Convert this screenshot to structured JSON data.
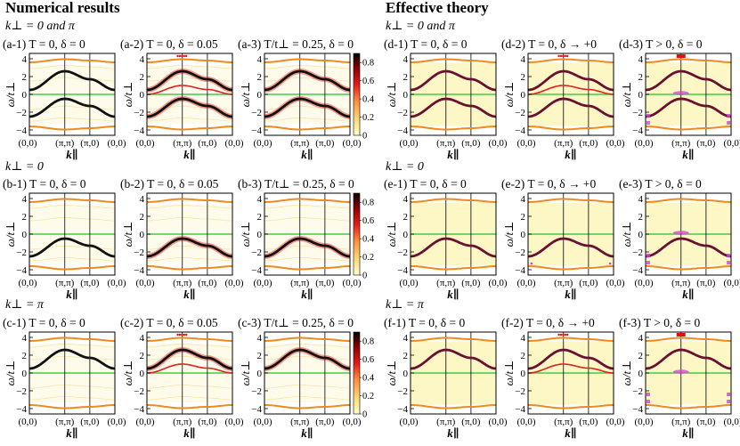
{
  "headings": {
    "left": "Numerical results",
    "right": "Effective theory"
  },
  "row_labels": {
    "both": "k⊥ = 0 and π",
    "zero": "k⊥ = 0",
    "pi": "k⊥ = π"
  },
  "panels": [
    {
      "id": "a-1",
      "label": "(a-1)  T = 0, δ = 0",
      "xlabel": "k∥",
      "ylabel": "ω/t⊥",
      "kind": "num",
      "kperp": "both",
      "cond": "t0d0"
    },
    {
      "id": "a-2",
      "label": "(a-2) T = 0, δ = 0.05",
      "xlabel": "k∥",
      "ylabel": "ω/t⊥",
      "kind": "num",
      "kperp": "both",
      "cond": "doped"
    },
    {
      "id": "a-3",
      "label": "(a-3) T/t⊥ = 0.25, δ = 0",
      "xlabel": "k∥",
      "ylabel": "ω/t⊥",
      "kind": "num",
      "kperp": "both",
      "cond": "temp"
    },
    {
      "id": "d-1",
      "label": "(d-1)  T = 0, δ = 0",
      "xlabel": "k∥",
      "ylabel": "ω/t⊥",
      "kind": "eff",
      "kperp": "both",
      "cond": "t0d0"
    },
    {
      "id": "d-2",
      "label": "(d-2) T = 0, δ → +0",
      "xlabel": "k∥",
      "ylabel": "ω/t⊥",
      "kind": "eff",
      "kperp": "both",
      "cond": "doped"
    },
    {
      "id": "d-3",
      "label": "(d-3)  T > 0, δ = 0",
      "xlabel": "k∥",
      "ylabel": "ω/t⊥",
      "kind": "eff",
      "kperp": "both",
      "cond": "temp"
    },
    {
      "id": "b-1",
      "label": "(b-1)  T = 0, δ = 0",
      "xlabel": "k∥",
      "ylabel": "ω/t⊥",
      "kind": "num",
      "kperp": "zero",
      "cond": "t0d0"
    },
    {
      "id": "b-2",
      "label": "(b-2) T = 0, δ = 0.05",
      "xlabel": "k∥",
      "ylabel": "ω/t⊥",
      "kind": "num",
      "kperp": "zero",
      "cond": "doped"
    },
    {
      "id": "b-3",
      "label": "(b-3) T/t⊥ = 0.25, δ = 0",
      "xlabel": "k∥",
      "ylabel": "ω/t⊥",
      "kind": "num",
      "kperp": "zero",
      "cond": "temp"
    },
    {
      "id": "e-1",
      "label": "(e-1)  T = 0, δ = 0",
      "xlabel": "k∥",
      "ylabel": "ω/t⊥",
      "kind": "eff",
      "kperp": "zero",
      "cond": "t0d0"
    },
    {
      "id": "e-2",
      "label": "(e-2) T = 0, δ → +0",
      "xlabel": "k∥",
      "ylabel": "ω/t⊥",
      "kind": "eff",
      "kperp": "zero",
      "cond": "doped"
    },
    {
      "id": "e-3",
      "label": "(e-3)  T > 0, δ = 0",
      "xlabel": "k∥",
      "ylabel": "ω/t⊥",
      "kind": "eff",
      "kperp": "zero",
      "cond": "temp"
    },
    {
      "id": "c-1",
      "label": "(c-1)  T = 0, δ = 0",
      "xlabel": "k∥",
      "ylabel": "ω/t⊥",
      "kind": "num",
      "kperp": "pi",
      "cond": "t0d0"
    },
    {
      "id": "c-2",
      "label": "(c-2) T = 0, δ = 0.05",
      "xlabel": "k∥",
      "ylabel": "ω/t⊥",
      "kind": "num",
      "kperp": "pi",
      "cond": "doped"
    },
    {
      "id": "c-3",
      "label": "(c-3) T/t⊥ = 0.25, δ = 0",
      "xlabel": "k∥",
      "ylabel": "ω/t⊥",
      "kind": "num",
      "kperp": "pi",
      "cond": "temp"
    },
    {
      "id": "f-1",
      "label": "(f-1)  T = 0, δ = 0",
      "xlabel": "k∥",
      "ylabel": "ω/t⊥",
      "kind": "eff",
      "kperp": "pi",
      "cond": "t0d0"
    },
    {
      "id": "f-2",
      "label": "(f-2) T = 0, δ → +0",
      "xlabel": "k∥",
      "ylabel": "ω/t⊥",
      "kind": "eff",
      "kperp": "pi",
      "cond": "doped"
    },
    {
      "id": "f-3",
      "label": "(f-3)  T > 0, δ = 0",
      "xlabel": "k∥",
      "ylabel": "ω/t⊥",
      "kind": "eff",
      "kperp": "pi",
      "cond": "temp"
    }
  ],
  "colors": {
    "main_band_num": "#111111",
    "main_band_eff": "#6a1030",
    "upper_band": "#f08a1c",
    "mid_band": "#e02020",
    "fermi_line": "#44cc44",
    "continuum": "#fdf6c0",
    "thermal_marks": "#d040d0",
    "doping_marks": "#dd1111",
    "frame": "#000000"
  },
  "chart_data": {
    "type": "heatmap",
    "description_axes": "spectral function vs momentum path",
    "x_path_ticks": [
      "(0,0)",
      "(π,π)",
      "(π,0)",
      "(0,0)"
    ],
    "x_path_lengths": [
      1.4142,
      1.0,
      1.0
    ],
    "y_ticks": [
      -4,
      -2,
      0,
      2,
      4
    ],
    "ylim": [
      -4.6,
      4.6
    ],
    "colorbar_ticks": [
      "0",
      "0.2",
      "0.4",
      "0.6",
      "0.8"
    ],
    "colorbar_range": [
      0,
      0.9
    ],
    "colorscale": [
      "#ffffcc",
      "#fed976",
      "#fd8d3c",
      "#e31a1c",
      "#8b0000",
      "#000000"
    ],
    "bands": {
      "lower_kperp0_at_ticks": [
        -2.5,
        -0.5,
        -1.3,
        -2.5
      ],
      "lower_kperppi_at_ticks": [
        0.5,
        2.6,
        1.7,
        0.5
      ],
      "upper_at_ticks": [
        3.6,
        3.95,
        3.8,
        3.6
      ],
      "bottom_at_ticks": [
        -3.6,
        -3.95,
        -3.8,
        -3.6
      ],
      "mid_doped_at_ticks": [
        0.0,
        1.0,
        0.55,
        0.0
      ]
    }
  }
}
